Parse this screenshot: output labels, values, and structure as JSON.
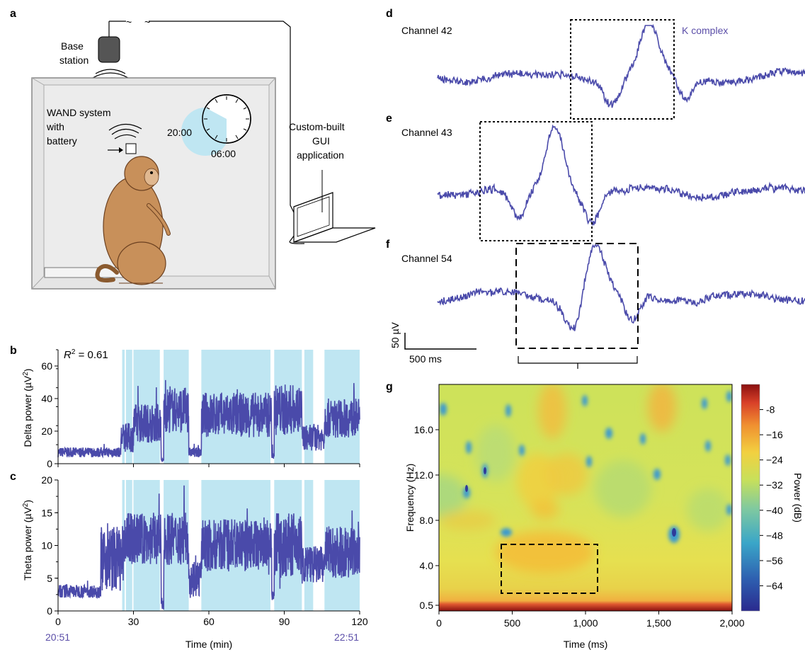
{
  "panel_labels": {
    "a": "a",
    "b": "b",
    "c": "c",
    "d": "d",
    "e": "e",
    "f": "f",
    "g": "g"
  },
  "schematic": {
    "base_station": [
      "Base",
      "station"
    ],
    "wand": [
      "WAND system",
      "with",
      "battery"
    ],
    "clock_start": "20:00",
    "clock_end": "06:00",
    "gui": [
      "Custom-built",
      "GUI",
      "application"
    ]
  },
  "colors": {
    "trace": "#4a4aaa",
    "shade": "#bfe6f2",
    "accent_text": "#5b4ea8"
  },
  "icons": [
    "monkey-icon",
    "laptop-icon",
    "clock-icon",
    "base-station-icon",
    "wireless-signal-icon"
  ],
  "chart_data": [
    {
      "id": "b",
      "type": "line",
      "ylabel": "Delta power (µV²)",
      "ylabel_main": "Delta power (µV",
      "ylabel_sup": "2",
      "ylabel_end": ")",
      "annotation_main": "R",
      "annotation_sup": "2",
      "annotation_rest": " = 0.61",
      "ylim": [
        0,
        70
      ],
      "yticks": [
        "0",
        "20",
        "40",
        "60"
      ],
      "xlim": [
        0,
        120
      ],
      "shaded_x": [
        [
          25.5,
          26.5
        ],
        [
          27,
          29.5
        ],
        [
          30,
          40.5
        ],
        [
          42,
          52
        ],
        [
          57,
          84.5
        ],
        [
          86,
          97
        ],
        [
          98,
          101.5
        ],
        [
          106,
          120
        ]
      ],
      "segments": [
        {
          "x0": 0,
          "x1": 25,
          "mean": 7,
          "amp": 3
        },
        {
          "x0": 25,
          "x1": 30,
          "mean": 16,
          "amp": 9
        },
        {
          "x0": 30,
          "x1": 41,
          "mean": 25,
          "amp": 12
        },
        {
          "x0": 41,
          "x1": 42,
          "mean": 2,
          "amp": 1
        },
        {
          "x0": 42,
          "x1": 52,
          "mean": 33,
          "amp": 14
        },
        {
          "x0": 52,
          "x1": 57,
          "mean": 7,
          "amp": 3
        },
        {
          "x0": 57,
          "x1": 85,
          "mean": 30,
          "amp": 14
        },
        {
          "x0": 85,
          "x1": 86,
          "mean": 6,
          "amp": 3
        },
        {
          "x0": 86,
          "x1": 97,
          "mean": 33,
          "amp": 16
        },
        {
          "x0": 97,
          "x1": 106,
          "mean": 16,
          "amp": 8
        },
        {
          "x0": 106,
          "x1": 120,
          "mean": 28,
          "amp": 12
        }
      ]
    },
    {
      "id": "c",
      "type": "line",
      "ylabel": "Theta power (µV²)",
      "ylabel_main": "Theta power (µV",
      "ylabel_sup": "2",
      "ylabel_end": ")",
      "ylim": [
        0,
        20
      ],
      "yticks": [
        "0",
        "5",
        "10",
        "15",
        "20"
      ],
      "xlim": [
        0,
        120
      ],
      "xticks": [
        "0",
        "30",
        "60",
        "90",
        "120"
      ],
      "xlabel": "Time (min)",
      "time_start": "20:51",
      "time_end": "22:51",
      "shaded_x": [
        [
          25.5,
          26.5
        ],
        [
          27,
          29.5
        ],
        [
          30,
          40.5
        ],
        [
          42,
          52
        ],
        [
          57,
          84.5
        ],
        [
          86,
          97
        ],
        [
          98,
          101.5
        ],
        [
          106,
          120
        ]
      ],
      "segments": [
        {
          "x0": 0,
          "x1": 17,
          "mean": 3,
          "amp": 1
        },
        {
          "x0": 17,
          "x1": 26,
          "mean": 8,
          "amp": 5
        },
        {
          "x0": 26,
          "x1": 41,
          "mean": 11,
          "amp": 4
        },
        {
          "x0": 41,
          "x1": 42,
          "mean": 1,
          "amp": 1
        },
        {
          "x0": 42,
          "x1": 52,
          "mean": 11,
          "amp": 4
        },
        {
          "x0": 52,
          "x1": 57,
          "mean": 5,
          "amp": 3
        },
        {
          "x0": 57,
          "x1": 85,
          "mean": 10,
          "amp": 4
        },
        {
          "x0": 85,
          "x1": 86,
          "mean": 2,
          "amp": 1
        },
        {
          "x0": 86,
          "x1": 97,
          "mean": 10,
          "amp": 5
        },
        {
          "x0": 97,
          "x1": 106,
          "mean": 7,
          "amp": 3
        },
        {
          "x0": 106,
          "x1": 120,
          "mean": 9,
          "amp": 4
        }
      ]
    },
    {
      "id": "def",
      "type": "line",
      "label_kcomplex": "K complex",
      "scalebar_y": "50 µV",
      "scalebar_x": "500 ms",
      "channels": [
        {
          "name": "Channel 42",
          "peak_t": 0.575,
          "trough_t": 0.475
        },
        {
          "name": "Channel 43",
          "peak_t": 0.32,
          "trough_t": 0.22
        },
        {
          "name": "Channel 54",
          "peak_t": 0.43,
          "trough_t": 0.37
        }
      ]
    },
    {
      "id": "g",
      "type": "heatmap",
      "xlabel": "Time (ms)",
      "ylabel": "Frequency (Hz)",
      "xlim": [
        0,
        2000
      ],
      "ylim": [
        0,
        20
      ],
      "xticks": [
        "0",
        "500",
        "1,000",
        "1,500",
        "2,000"
      ],
      "yticks": [
        "0.5",
        "4.0",
        "8.0",
        "12.0",
        "16.0"
      ],
      "colorbar_label": "Power (dB)",
      "colorbar_ticks": [
        "-8",
        "−16",
        "−24",
        "−32",
        "−40",
        "−48",
        "−56",
        "−64"
      ],
      "colorbar_range": [
        -72,
        0
      ],
      "highlight_box": {
        "x0": 420,
        "x1": 1080,
        "f0": 1.2,
        "f1": 5.5
      }
    }
  ]
}
